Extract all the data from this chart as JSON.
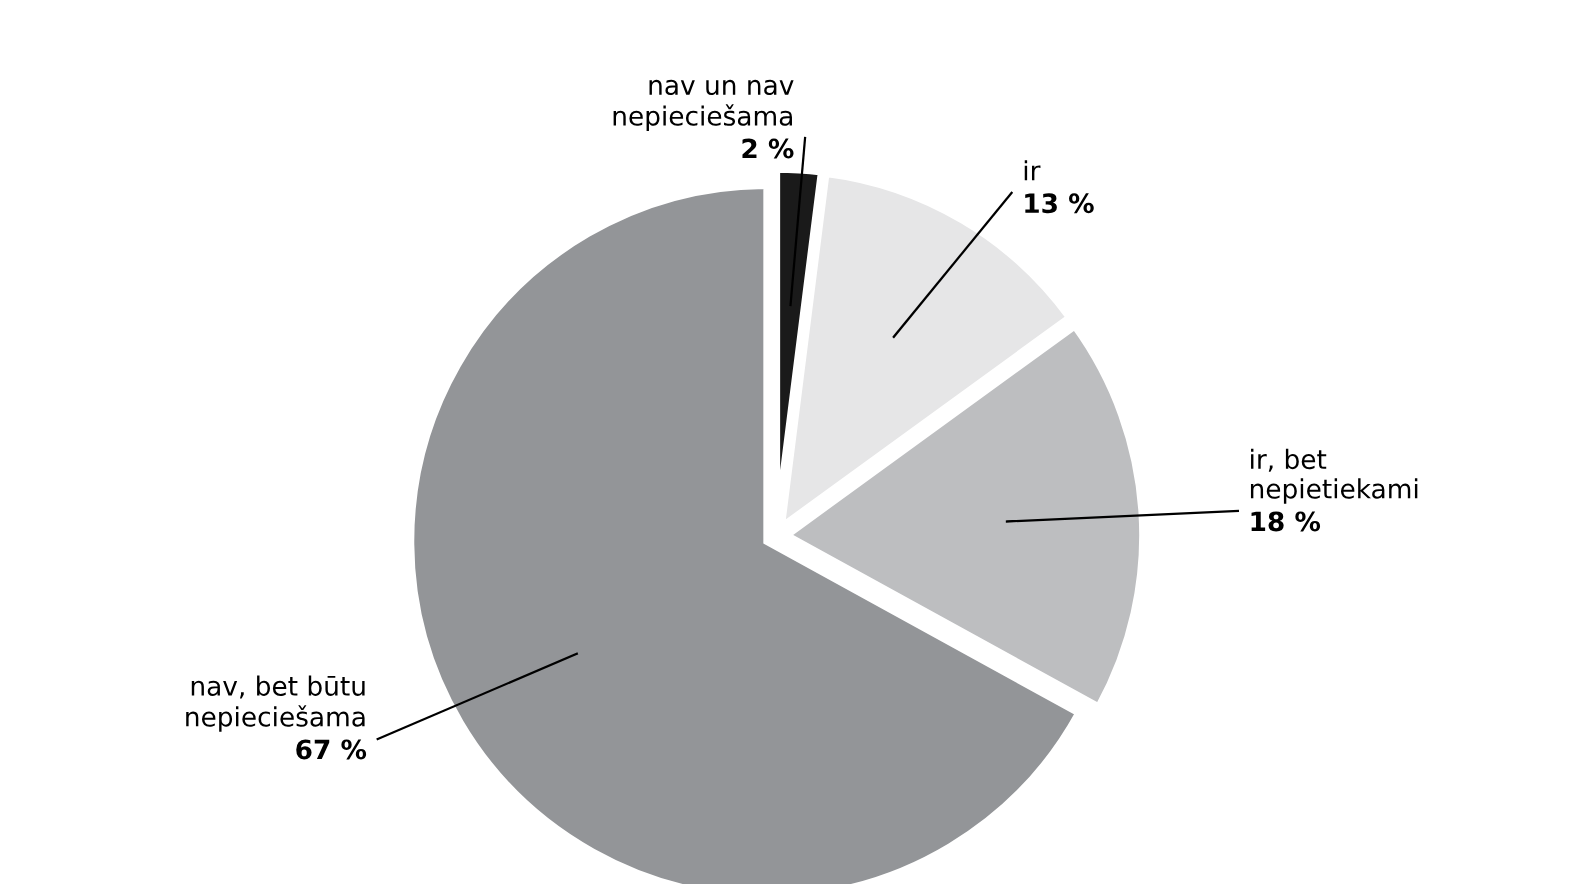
{
  "chart_data": {
    "type": "pie",
    "categories": [
      "nav un nav\nnepieciešama",
      "ir",
      "ir, bet\nnepietiekami",
      "nav, bet būtu\nnepieciešama"
    ],
    "values": [
      2,
      13,
      18,
      67
    ],
    "value_labels": [
      "2 %",
      "13 %",
      "18 %",
      "67 %"
    ],
    "colors": [
      "#1a1a1a",
      "#e6e6e7",
      "#bdbec0",
      "#939598"
    ],
    "legend": false
  }
}
